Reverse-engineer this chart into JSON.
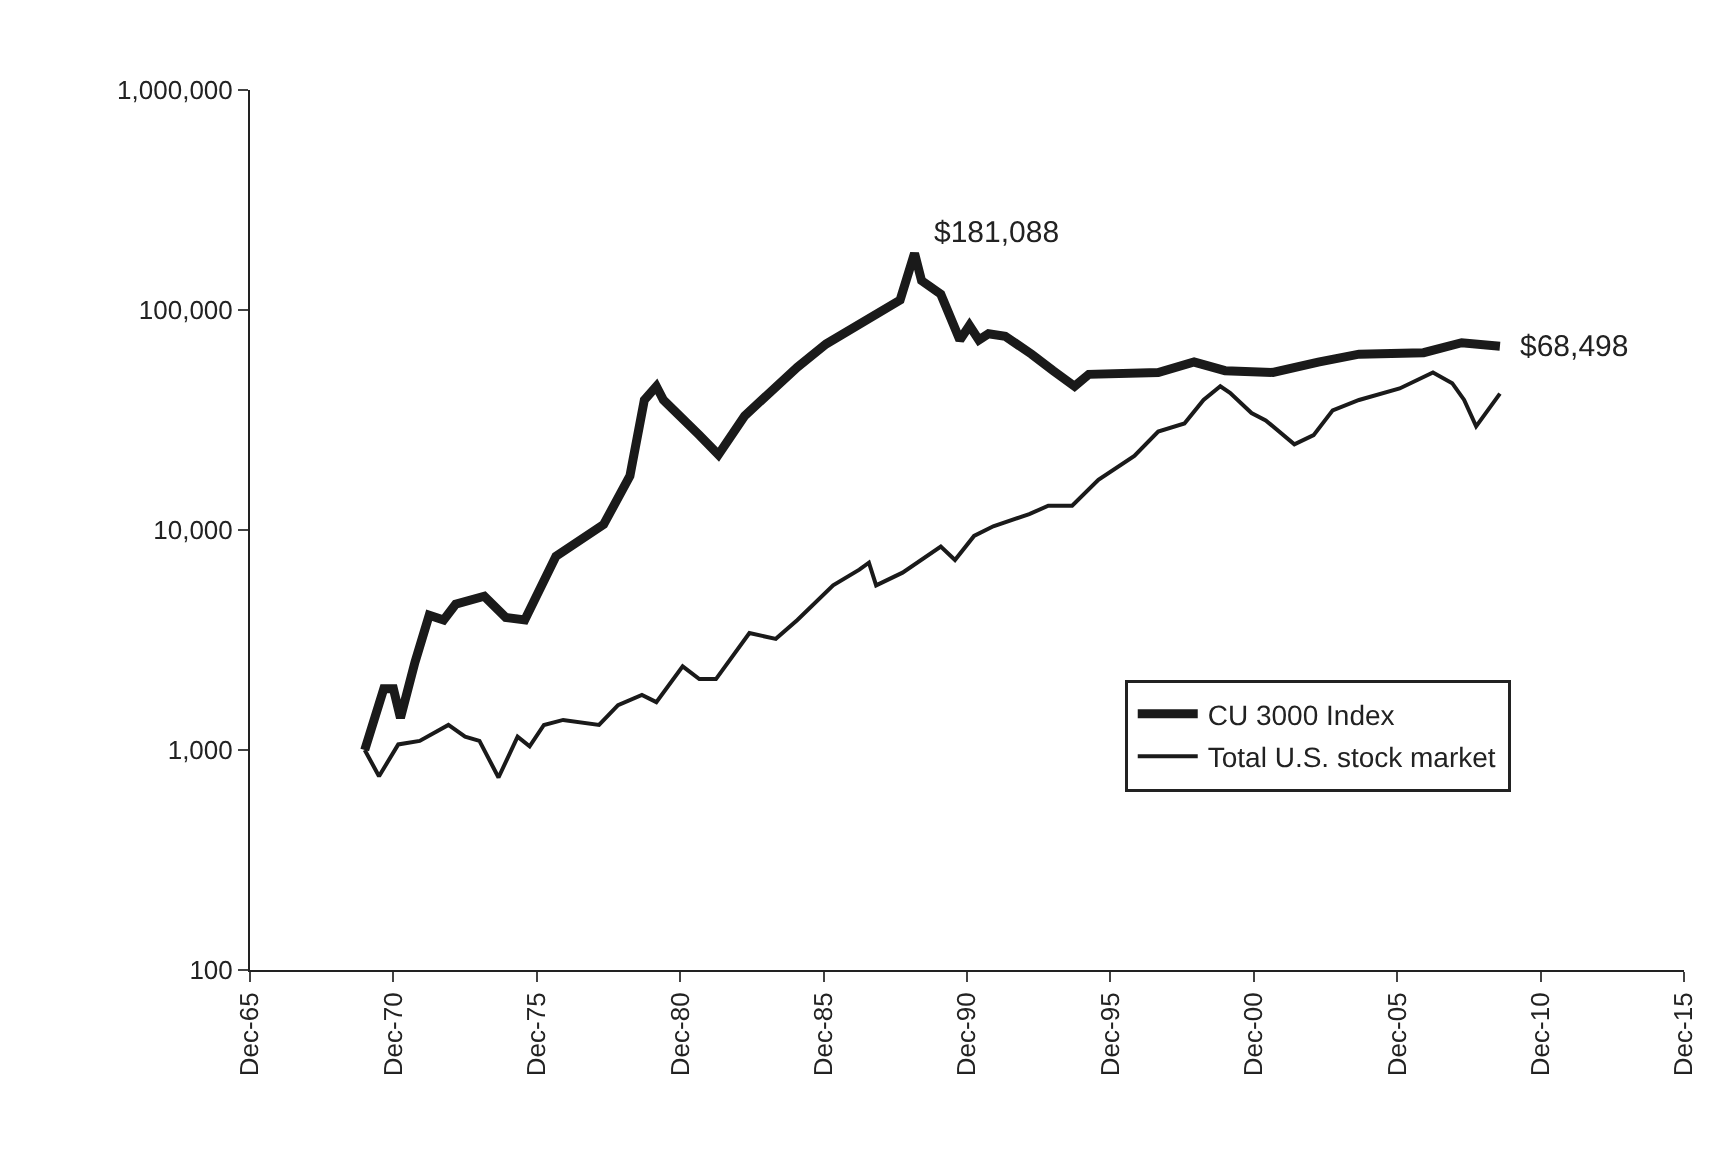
{
  "chart_data": {
    "type": "line",
    "log": "y",
    "legend": "bottom right",
    "marker": "none",
    "line_style": "solid",
    "xlim": [
      "1965-12",
      "2015-12"
    ],
    "ylim": [
      100,
      1000000
    ],
    "xticks": [
      {
        "value": "1965-12",
        "label": "Dec-65"
      },
      {
        "value": "1970-12",
        "label": "Dec-70"
      },
      {
        "value": "1975-12",
        "label": "Dec-75"
      },
      {
        "value": "1980-12",
        "label": "Dec-80"
      },
      {
        "value": "1985-12",
        "label": "Dec-85"
      },
      {
        "value": "1990-12",
        "label": "Dec-90"
      },
      {
        "value": "1995-12",
        "label": "Dec-95"
      },
      {
        "value": "2000-12",
        "label": "Dec-00"
      },
      {
        "value": "2005-12",
        "label": "Dec-05"
      },
      {
        "value": "2010-12",
        "label": "Dec-10"
      },
      {
        "value": "2015-12",
        "label": "Dec-15"
      }
    ],
    "yticks": [
      100,
      {
        "value": 1000,
        "label": "1,000"
      },
      {
        "value": 10000,
        "label": "10,000"
      },
      {
        "value": 100000,
        "label": "100,000"
      },
      {
        "value": 1000000,
        "label": "1,000,000"
      }
    ],
    "series": [
      {
        "name": "CU 3000 Index",
        "color": "#1a1a1a",
        "x": [
          "1969-12",
          "1970-08",
          "1970-12",
          "1971-03",
          "1971-09",
          "1972-03",
          "1972-09",
          "1973-02",
          "1974-02",
          "1974-11",
          "1975-07",
          "1976-08",
          "1978-04",
          "1979-03",
          "1979-09",
          "1980-02",
          "1980-05",
          "1981-08",
          "1982-04",
          "1983-03",
          "1985-01",
          "1986-01",
          "1988-08",
          "1989-02",
          "1989-05",
          "1990-01",
          "1990-09",
          "1991-01",
          "1991-05",
          "1991-09",
          "1992-04",
          "1993-03",
          "1993-12",
          "1994-09",
          "1995-03",
          "1997-08",
          "1998-11",
          "1999-12",
          "2001-08",
          "2003-03",
          "2004-08",
          "2006-11",
          "2008-03",
          "2009-07"
        ],
        "values": [
          1000,
          1900,
          1900,
          1400,
          2500,
          4100,
          3900,
          4600,
          5000,
          4000,
          3900,
          7600,
          10600,
          17600,
          39000,
          45000,
          39000,
          27000,
          22000,
          33000,
          55000,
          70000,
          111000,
          181088,
          136000,
          118000,
          73000,
          85000,
          73000,
          78000,
          76000,
          63000,
          53000,
          45000,
          51000,
          52000,
          58000,
          53000,
          52000,
          58000,
          63000,
          64000,
          71000,
          68498
        ]
      },
      {
        "name": "Total U.S. stock market",
        "color": "#1a1a1a",
        "x": [
          "1969-12",
          "1970-06",
          "1971-02",
          "1971-11",
          "1972-11",
          "1973-06",
          "1973-12",
          "1974-08",
          "1975-04",
          "1975-09",
          "1976-03",
          "1976-11",
          "1978-02",
          "1978-10",
          "1979-08",
          "1980-02",
          "1981-01",
          "1981-08",
          "1982-03",
          "1983-05",
          "1984-04",
          "1985-01",
          "1986-04",
          "1987-03",
          "1987-07",
          "1987-10",
          "1988-09",
          "1990-01",
          "1990-07",
          "1991-03",
          "1991-11",
          "1993-02",
          "1993-10",
          "1994-08",
          "1995-07",
          "1996-10",
          "1997-08",
          "1998-07",
          "1999-03",
          "1999-10",
          "2000-02",
          "2000-11",
          "2001-05",
          "2002-05",
          "2003-01",
          "2003-09",
          "2004-08",
          "2006-01",
          "2007-03",
          "2007-11",
          "2008-04",
          "2008-09",
          "2009-07"
        ],
        "values": [
          1000,
          760,
          1060,
          1100,
          1300,
          1150,
          1100,
          750,
          1150,
          1040,
          1300,
          1370,
          1300,
          1600,
          1780,
          1650,
          2400,
          2100,
          2100,
          3400,
          3200,
          3900,
          5600,
          6600,
          7100,
          5600,
          6400,
          8400,
          7300,
          9400,
          10400,
          11800,
          12900,
          12900,
          16900,
          21700,
          28000,
          30500,
          39000,
          45000,
          42000,
          34000,
          31500,
          24500,
          27000,
          35000,
          39000,
          44000,
          52000,
          46500,
          39000,
          29600,
          41700
        ]
      }
    ],
    "annotations": [
      {
        "text": "$181,088",
        "x": "1989-02",
        "y": 181088
      },
      {
        "text": "$68,498",
        "x": "2009-07",
        "y": 68498
      }
    ]
  }
}
